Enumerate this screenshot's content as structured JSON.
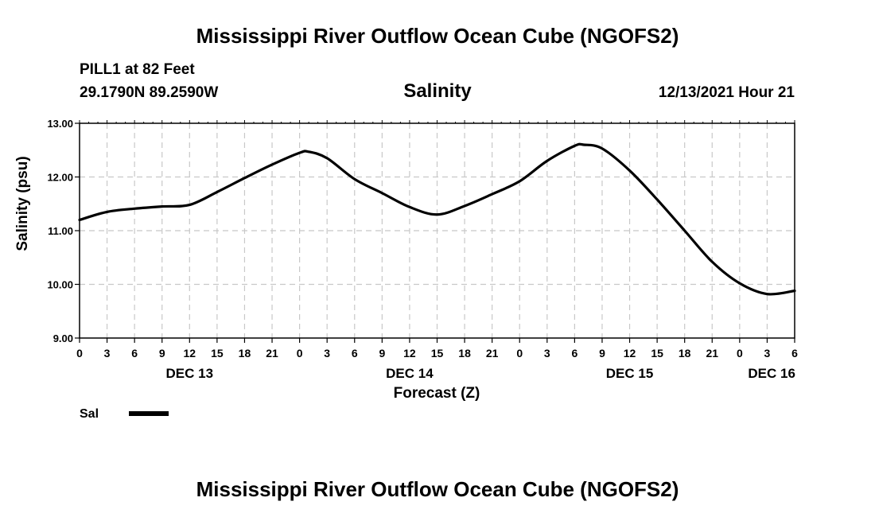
{
  "header": {
    "title": "Mississippi River Outflow Ocean Cube (NGOFS2)",
    "station": "PILL1 at 82 Feet",
    "coords": "29.1790N  89.2590W",
    "variable": "Salinity",
    "datetime": "12/13/2021 Hour 21"
  },
  "footer": {
    "title": "Mississippi River Outflow Ocean Cube (NGOFS2)"
  },
  "colors": {
    "line": "#000000",
    "grid": "#c8c8c8"
  },
  "chart_data": {
    "type": "line",
    "title": "Salinity",
    "xlabel": "Forecast (Z)",
    "ylabel": "Salinity (psu)",
    "x_unit": "hours since 12/13/2021 00Z",
    "xlim": [
      0,
      78
    ],
    "ylim": [
      9.0,
      13.0
    ],
    "y_ticks": [
      "9.00",
      "10.00",
      "11.00",
      "12.00",
      "13.00"
    ],
    "x_tick_hours": [
      0,
      3,
      6,
      9,
      12,
      15,
      18,
      21,
      24,
      27,
      30,
      33,
      36,
      39,
      42,
      45,
      48,
      51,
      54,
      57,
      60,
      63,
      66,
      69,
      72,
      75,
      78
    ],
    "x_tick_labels": [
      "0",
      "3",
      "6",
      "9",
      "12",
      "15",
      "18",
      "21",
      "0",
      "3",
      "6",
      "9",
      "12",
      "15",
      "18",
      "21",
      "0",
      "3",
      "6",
      "9",
      "12",
      "15",
      "18",
      "21",
      "0",
      "3",
      "6"
    ],
    "day_labels": [
      {
        "hour": 12,
        "label": "DEC 13"
      },
      {
        "hour": 36,
        "label": "DEC 14"
      },
      {
        "hour": 60,
        "label": "DEC 15"
      },
      {
        "hour": 75.5,
        "label": "DEC 16"
      }
    ],
    "grid": true,
    "legend": [
      {
        "name": "Sal",
        "position": "bottom-left"
      }
    ],
    "series": [
      {
        "name": "Sal",
        "x": [
          0,
          3,
          6,
          9,
          12,
          15,
          18,
          21,
          24,
          25,
          27,
          30,
          33,
          36,
          39,
          42,
          45,
          48,
          51,
          54,
          55,
          57,
          60,
          63,
          66,
          69,
          72,
          75,
          78
        ],
        "y": [
          11.2,
          11.35,
          11.41,
          11.45,
          11.48,
          11.72,
          11.98,
          12.23,
          12.45,
          12.47,
          12.35,
          11.96,
          11.7,
          11.44,
          11.3,
          11.46,
          11.68,
          11.92,
          12.3,
          12.58,
          12.6,
          12.53,
          12.12,
          11.58,
          11.0,
          10.42,
          10.02,
          9.82,
          9.88
        ]
      }
    ]
  }
}
